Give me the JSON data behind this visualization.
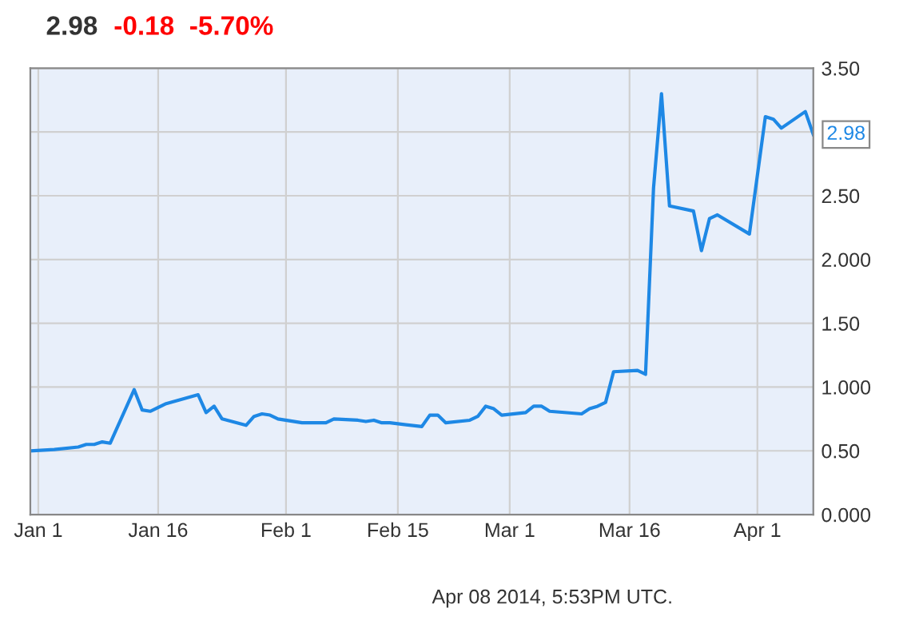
{
  "chart_data": {
    "type": "line",
    "title": "2.98",
    "subtitle": "-0.18  -5.70%",
    "x": [
      "2013-12-31",
      "2014-01-03",
      "2014-01-06",
      "2014-01-07",
      "2014-01-08",
      "2014-01-09",
      "2014-01-10",
      "2014-01-13",
      "2014-01-14",
      "2014-01-15",
      "2014-01-17",
      "2014-01-21",
      "2014-01-22",
      "2014-01-23",
      "2014-01-24",
      "2014-01-27",
      "2014-01-28",
      "2014-01-29",
      "2014-01-30",
      "2014-01-31",
      "2014-02-03",
      "2014-02-06",
      "2014-02-07",
      "2014-02-10",
      "2014-02-11",
      "2014-02-12",
      "2014-02-13",
      "2014-02-14",
      "2014-02-18",
      "2014-02-19",
      "2014-02-20",
      "2014-02-21",
      "2014-02-24",
      "2014-02-25",
      "2014-02-26",
      "2014-02-27",
      "2014-02-28",
      "2014-03-03",
      "2014-03-04",
      "2014-03-05",
      "2014-03-06",
      "2014-03-10",
      "2014-03-11",
      "2014-03-12",
      "2014-03-13",
      "2014-03-14",
      "2014-03-17",
      "2014-03-18",
      "2014-03-19",
      "2014-03-20",
      "2014-03-21",
      "2014-03-24",
      "2014-03-25",
      "2014-03-26",
      "2014-03-27",
      "2014-03-31",
      "2014-04-02",
      "2014-04-03",
      "2014-04-04",
      "2014-04-07",
      "2014-04-08"
    ],
    "series": [
      {
        "color": "#1e88e5",
        "values": [
          0.5,
          0.51,
          0.53,
          0.55,
          0.55,
          0.57,
          0.56,
          0.98,
          0.82,
          0.81,
          0.87,
          0.94,
          0.8,
          0.85,
          0.75,
          0.7,
          0.77,
          0.79,
          0.78,
          0.75,
          0.72,
          0.72,
          0.75,
          0.74,
          0.73,
          0.74,
          0.72,
          0.72,
          0.69,
          0.78,
          0.78,
          0.72,
          0.74,
          0.77,
          0.85,
          0.83,
          0.78,
          0.8,
          0.85,
          0.85,
          0.81,
          0.79,
          0.83,
          0.85,
          0.88,
          1.12,
          1.13,
          1.1,
          2.56,
          3.3,
          2.42,
          2.38,
          2.07,
          2.32,
          2.35,
          2.2,
          3.12,
          3.1,
          3.03,
          3.16,
          2.98
        ],
        "value_labels": [
          null,
          null,
          null,
          null,
          null,
          null,
          null,
          null,
          null,
          null,
          null,
          null,
          null,
          null,
          null,
          null,
          null,
          null,
          null,
          null,
          null,
          null,
          null,
          null,
          null,
          null,
          null,
          null,
          null,
          null,
          null,
          null,
          null,
          null,
          null,
          null,
          null,
          null,
          null,
          null,
          null,
          null,
          null,
          null,
          null,
          null,
          null,
          null,
          null,
          null,
          null,
          null,
          null,
          null,
          null,
          null,
          null,
          null,
          null,
          null,
          "2.98"
        ]
      }
    ],
    "xlim": [
      "2013-12-31",
      "2014-04-08"
    ],
    "xticks": [
      {
        "value": "2014-01-01",
        "label": "Jan 1"
      },
      {
        "value": "2014-01-16",
        "label": "Jan 16"
      },
      {
        "value": "2014-02-01",
        "label": "Feb 1"
      },
      {
        "value": "2014-02-15",
        "label": "Feb 15"
      },
      {
        "value": "2014-03-01",
        "label": "Mar 1"
      },
      {
        "value": "2014-03-16",
        "label": "Mar 16"
      },
      {
        "value": "2014-04-01",
        "label": "Apr 1"
      }
    ],
    "ylim": [
      0,
      3.5
    ],
    "yticks": [
      {
        "value": 0,
        "label": "0.000"
      },
      {
        "value": 0.5,
        "label": "0.50"
      },
      {
        "value": 1,
        "label": "1.000"
      },
      {
        "value": 1.5,
        "label": "1.50"
      },
      {
        "value": 2,
        "label": "2.000"
      },
      {
        "value": 2.5,
        "label": "2.50"
      },
      {
        "value": 3,
        "label": null
      },
      {
        "value": 3.5,
        "label": "3.50"
      }
    ],
    "grid": true,
    "marker": "none",
    "line_style": "solid",
    "annotations": [
      "Apr 08 2014, 5:53PM UTC."
    ]
  }
}
